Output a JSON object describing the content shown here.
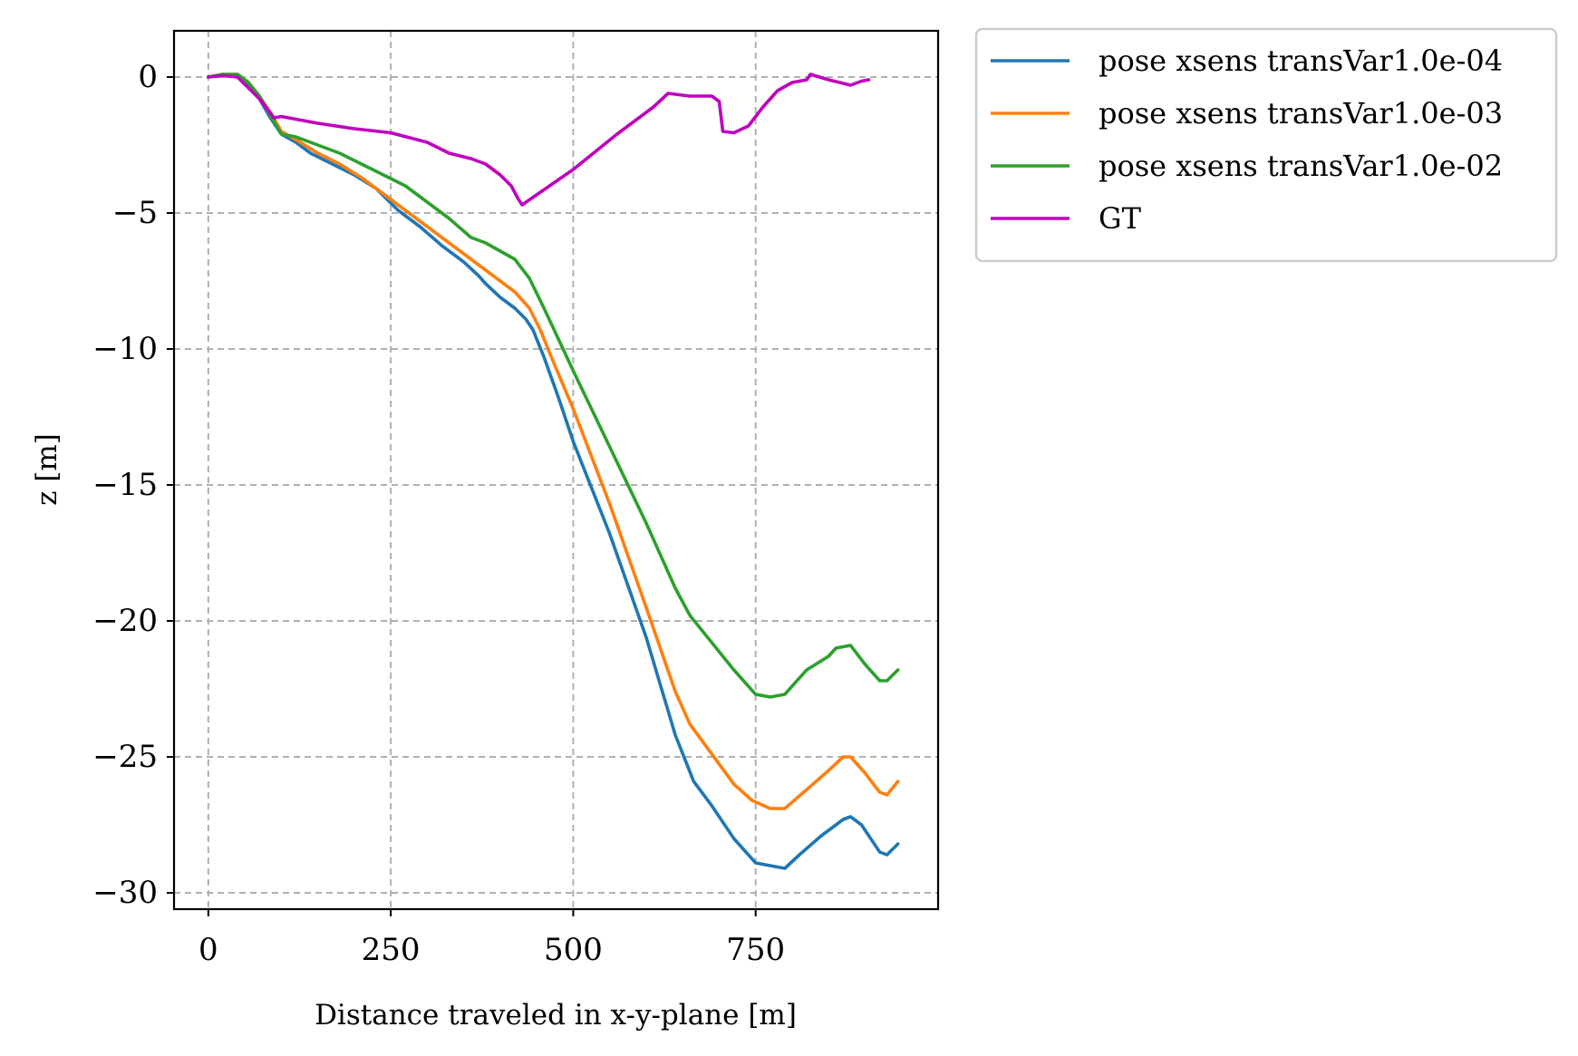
{
  "chart_data": {
    "type": "line",
    "title": "",
    "xlabel": "Distance traveled in x-y-plane [m]",
    "ylabel": "z [m]",
    "xlim": [
      -47,
      1000
    ],
    "ylim": [
      -30.6,
      1.7
    ],
    "xticks": [
      0,
      250,
      500,
      750
    ],
    "xtick_labels": [
      "0",
      "250",
      "500",
      "750"
    ],
    "yticks": [
      0,
      -5,
      -10,
      -15,
      -20,
      -25,
      -30
    ],
    "ytick_labels": [
      "0",
      "−5",
      "−10",
      "−15",
      "−20",
      "−25",
      "−30"
    ],
    "grid": true,
    "grid_style": "dashed",
    "legend_position": "outside top-right",
    "series": [
      {
        "name": "pose xsens transVar1.0e-04",
        "color": "#1f77b4",
        "points": [
          [
            0,
            0
          ],
          [
            20,
            0.1
          ],
          [
            40,
            0.05
          ],
          [
            55,
            -0.3
          ],
          [
            70,
            -0.8
          ],
          [
            85,
            -1.5
          ],
          [
            100,
            -2.1
          ],
          [
            120,
            -2.4
          ],
          [
            140,
            -2.8
          ],
          [
            170,
            -3.2
          ],
          [
            200,
            -3.6
          ],
          [
            230,
            -4.1
          ],
          [
            260,
            -4.9
          ],
          [
            290,
            -5.5
          ],
          [
            320,
            -6.2
          ],
          [
            350,
            -6.8
          ],
          [
            370,
            -7.3
          ],
          [
            380,
            -7.6
          ],
          [
            400,
            -8.1
          ],
          [
            420,
            -8.5
          ],
          [
            435,
            -8.9
          ],
          [
            445,
            -9.3
          ],
          [
            460,
            -10.3
          ],
          [
            480,
            -11.8
          ],
          [
            500,
            -13.4
          ],
          [
            550,
            -16.8
          ],
          [
            600,
            -20.6
          ],
          [
            640,
            -24.2
          ],
          [
            665,
            -25.9
          ],
          [
            690,
            -26.8
          ],
          [
            720,
            -28.0
          ],
          [
            750,
            -28.9
          ],
          [
            770,
            -29.0
          ],
          [
            790,
            -29.1
          ],
          [
            810,
            -28.6
          ],
          [
            840,
            -27.9
          ],
          [
            870,
            -27.3
          ],
          [
            880,
            -27.2
          ],
          [
            895,
            -27.5
          ],
          [
            920,
            -28.5
          ],
          [
            930,
            -28.6
          ],
          [
            945,
            -28.2
          ]
        ]
      },
      {
        "name": "pose xsens transVar1.0e-03",
        "color": "#ff7f0e",
        "points": [
          [
            0,
            0
          ],
          [
            20,
            0.1
          ],
          [
            40,
            0.1
          ],
          [
            55,
            -0.2
          ],
          [
            70,
            -0.7
          ],
          [
            85,
            -1.3
          ],
          [
            100,
            -2.0
          ],
          [
            120,
            -2.3
          ],
          [
            150,
            -2.8
          ],
          [
            180,
            -3.2
          ],
          [
            210,
            -3.7
          ],
          [
            240,
            -4.3
          ],
          [
            270,
            -4.9
          ],
          [
            300,
            -5.5
          ],
          [
            330,
            -6.1
          ],
          [
            360,
            -6.7
          ],
          [
            380,
            -7.1
          ],
          [
            400,
            -7.5
          ],
          [
            420,
            -7.9
          ],
          [
            440,
            -8.5
          ],
          [
            455,
            -9.3
          ],
          [
            470,
            -10.3
          ],
          [
            500,
            -12.2
          ],
          [
            550,
            -15.7
          ],
          [
            600,
            -19.5
          ],
          [
            640,
            -22.6
          ],
          [
            660,
            -23.8
          ],
          [
            690,
            -24.9
          ],
          [
            720,
            -26.0
          ],
          [
            745,
            -26.6
          ],
          [
            770,
            -26.9
          ],
          [
            790,
            -26.9
          ],
          [
            820,
            -26.2
          ],
          [
            850,
            -25.5
          ],
          [
            870,
            -25.0
          ],
          [
            880,
            -25.0
          ],
          [
            900,
            -25.6
          ],
          [
            920,
            -26.3
          ],
          [
            930,
            -26.4
          ],
          [
            945,
            -25.9
          ]
        ]
      },
      {
        "name": "pose xsens transVar1.0e-02",
        "color": "#2ca02c",
        "points": [
          [
            0,
            0
          ],
          [
            20,
            0.1
          ],
          [
            40,
            0.1
          ],
          [
            55,
            -0.2
          ],
          [
            70,
            -0.7
          ],
          [
            85,
            -1.4
          ],
          [
            100,
            -2.1
          ],
          [
            120,
            -2.2
          ],
          [
            150,
            -2.5
          ],
          [
            180,
            -2.8
          ],
          [
            210,
            -3.2
          ],
          [
            240,
            -3.6
          ],
          [
            270,
            -4.0
          ],
          [
            300,
            -4.6
          ],
          [
            330,
            -5.2
          ],
          [
            360,
            -5.9
          ],
          [
            380,
            -6.1
          ],
          [
            400,
            -6.4
          ],
          [
            420,
            -6.7
          ],
          [
            440,
            -7.4
          ],
          [
            460,
            -8.5
          ],
          [
            500,
            -10.8
          ],
          [
            550,
            -13.6
          ],
          [
            600,
            -16.4
          ],
          [
            640,
            -18.8
          ],
          [
            660,
            -19.8
          ],
          [
            690,
            -20.8
          ],
          [
            720,
            -21.8
          ],
          [
            750,
            -22.7
          ],
          [
            770,
            -22.8
          ],
          [
            790,
            -22.7
          ],
          [
            820,
            -21.8
          ],
          [
            850,
            -21.3
          ],
          [
            860,
            -21.0
          ],
          [
            880,
            -20.9
          ],
          [
            900,
            -21.6
          ],
          [
            920,
            -22.2
          ],
          [
            930,
            -22.2
          ],
          [
            945,
            -21.8
          ]
        ]
      },
      {
        "name": "GT",
        "color": "#bf00bf",
        "points": [
          [
            0,
            0
          ],
          [
            20,
            0.05
          ],
          [
            40,
            0.0
          ],
          [
            55,
            -0.4
          ],
          [
            70,
            -0.8
          ],
          [
            90,
            -1.5
          ],
          [
            100,
            -1.45
          ],
          [
            110,
            -1.5
          ],
          [
            150,
            -1.7
          ],
          [
            200,
            -1.9
          ],
          [
            250,
            -2.05
          ],
          [
            300,
            -2.4
          ],
          [
            330,
            -2.8
          ],
          [
            360,
            -3.0
          ],
          [
            380,
            -3.2
          ],
          [
            400,
            -3.6
          ],
          [
            415,
            -4.0
          ],
          [
            425,
            -4.5
          ],
          [
            430,
            -4.7
          ],
          [
            500,
            -3.4
          ],
          [
            560,
            -2.1
          ],
          [
            610,
            -1.1
          ],
          [
            630,
            -0.6
          ],
          [
            660,
            -0.7
          ],
          [
            690,
            -0.7
          ],
          [
            700,
            -0.9
          ],
          [
            705,
            -2.0
          ],
          [
            720,
            -2.05
          ],
          [
            740,
            -1.8
          ],
          [
            760,
            -1.1
          ],
          [
            780,
            -0.5
          ],
          [
            800,
            -0.2
          ],
          [
            820,
            -0.1
          ],
          [
            825,
            0.1
          ],
          [
            850,
            -0.1
          ],
          [
            880,
            -0.3
          ],
          [
            895,
            -0.15
          ],
          [
            905,
            -0.1
          ]
        ]
      }
    ]
  }
}
